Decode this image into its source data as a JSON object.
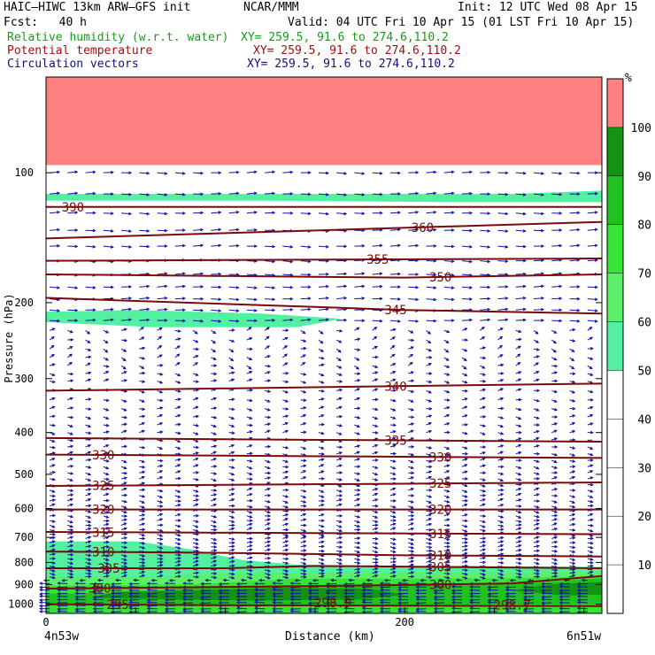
{
  "header": {
    "model": "HAIC–HIWC 13km ARW–GFS init",
    "center": "NCAR/MMM",
    "init": "Init: 12 UTC Wed 08 Apr 15",
    "fcst": "Fcst:   40 h",
    "valid": "Valid: 04 UTC Fri 10 Apr 15 (01 LST Fri 10 Apr 15)"
  },
  "fields": [
    {
      "name": "Relative humidity (w.r.t. water)",
      "xy": "XY= 259.5, 91.6 to 274.6,110.2",
      "color": "#1a9a1a"
    },
    {
      "name": "Potential temperature",
      "xy": "XY= 259.5, 91.6 to 274.6,110.2",
      "color": "#a01010"
    },
    {
      "name": "Circulation vectors",
      "xy": "XY= 259.5, 91.6 to 274.6,110.2",
      "color": "#101080"
    }
  ],
  "axes": {
    "ylabel": "Pressure (hPa)",
    "xlabel": "Distance (km)",
    "left_point": "4n53w",
    "right_point": "6n51w"
  },
  "colorbar": {
    "unit": "%",
    "ticks": [
      10,
      20,
      30,
      40,
      50,
      60,
      70,
      80,
      90,
      100
    ],
    "bands": [
      {
        "from": 50,
        "to": 60,
        "color": "#52f0a0"
      },
      {
        "from": 60,
        "to": 70,
        "color": "#5cf06a"
      },
      {
        "from": 70,
        "to": 80,
        "color": "#36e436"
      },
      {
        "from": 80,
        "to": 90,
        "color": "#1fc21f"
      },
      {
        "from": 90,
        "to": 100,
        "color": "#129312"
      },
      {
        "from": 100,
        "to": 110,
        "color": "#ff8080"
      }
    ]
  },
  "chart_data": {
    "type": "contour cross-section",
    "xlim": [
      0,
      310
    ],
    "x_ticks": [
      0,
      200
    ],
    "ylim": [
      1050,
      60
    ],
    "y_ticks": [
      100,
      200,
      300,
      400,
      500,
      600,
      700,
      800,
      900,
      1000
    ],
    "y_log": true,
    "theta_contours": [
      {
        "value": 295,
        "p": [
          [
            0,
            1000
          ],
          [
            100,
            1005
          ],
          [
            310,
            1010
          ]
        ],
        "labels": [
          [
            40,
            "295"
          ]
        ]
      },
      {
        "value": 300,
        "p": [
          [
            0,
            920
          ],
          [
            100,
            912
          ],
          [
            200,
            902
          ],
          [
            260,
            895
          ],
          [
            310,
            860
          ]
        ],
        "labels": [
          [
            30,
            "300"
          ],
          [
            220,
            "300"
          ]
        ]
      },
      {
        "value": 305,
        "p": [
          [
            0,
            825
          ],
          [
            100,
            825
          ],
          [
            150,
            815
          ],
          [
            310,
            825
          ]
        ],
        "labels": [
          [
            35,
            "305"
          ],
          [
            220,
            "305"
          ]
        ]
      },
      {
        "value": 310,
        "p": [
          [
            0,
            755
          ],
          [
            100,
            760
          ],
          [
            200,
            770
          ],
          [
            310,
            775
          ]
        ],
        "labels": [
          [
            32,
            "310"
          ],
          [
            220,
            "310"
          ]
        ]
      },
      {
        "value": 315,
        "p": [
          [
            0,
            680
          ],
          [
            310,
            688
          ]
        ],
        "labels": [
          [
            32,
            "315"
          ],
          [
            220,
            "315"
          ]
        ]
      },
      {
        "value": 320,
        "p": [
          [
            0,
            603
          ],
          [
            310,
            603
          ]
        ],
        "labels": [
          [
            32,
            "320"
          ],
          [
            220,
            "320"
          ]
        ]
      },
      {
        "value": 325,
        "p": [
          [
            0,
            532
          ],
          [
            310,
            522
          ]
        ],
        "labels": [
          [
            32,
            "325"
          ],
          [
            220,
            "325"
          ]
        ]
      },
      {
        "value": 330,
        "p": [
          [
            0,
            450
          ],
          [
            310,
            458
          ]
        ],
        "labels": [
          [
            32,
            "330"
          ],
          [
            220,
            "330"
          ]
        ]
      },
      {
        "value": 335,
        "p": [
          [
            0,
            412
          ],
          [
            310,
            420
          ]
        ],
        "labels": [
          [
            195,
            "335"
          ]
        ]
      },
      {
        "value": 340,
        "p": [
          [
            0,
            320
          ],
          [
            310,
            308
          ]
        ],
        "labels": [
          [
            195,
            "340"
          ]
        ]
      },
      {
        "value": 345,
        "p": [
          [
            0,
            195
          ],
          [
            200,
            208
          ],
          [
            310,
            212
          ]
        ],
        "labels": [
          [
            195,
            "345"
          ]
        ]
      },
      {
        "value": 350,
        "p": [
          [
            0,
            172
          ],
          [
            200,
            175
          ],
          [
            310,
            172
          ]
        ],
        "labels": [
          [
            220,
            "350"
          ]
        ]
      },
      {
        "value": 355,
        "p": [
          [
            0,
            160
          ],
          [
            310,
            158
          ]
        ],
        "labels": [
          [
            185,
            "355"
          ]
        ]
      },
      {
        "value": 360,
        "p": [
          [
            0,
            142
          ],
          [
            310,
            130
          ]
        ],
        "labels": [
          [
            210,
            "360"
          ]
        ]
      },
      {
        "value": 390,
        "p": [
          [
            0,
            120
          ],
          [
            310,
            120
          ]
        ],
        "labels": [
          [
            15,
            "390"
          ]
        ]
      }
    ],
    "extrema_labels": [
      {
        "x": 160,
        "p": 992,
        "text": "298.9"
      },
      {
        "x": 260,
        "p": 1003,
        "text": "298.7"
      }
    ]
  }
}
